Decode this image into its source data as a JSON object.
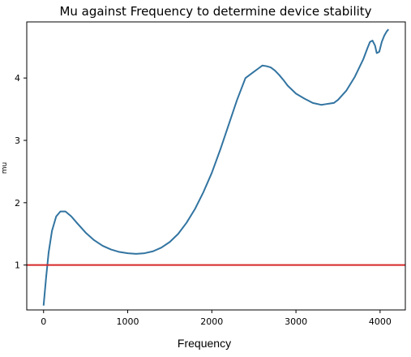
{
  "chart_data": {
    "type": "line",
    "title": "Mu against Frequency to determine device stability",
    "xlabel": "Frequency",
    "ylabel": "mu",
    "xlim": [
      -200,
      4300
    ],
    "ylim": [
      0.28,
      4.9
    ],
    "xticks": [
      0,
      1000,
      2000,
      3000,
      4000
    ],
    "yticks": [
      1,
      2,
      3,
      4
    ],
    "grid": false,
    "series": [
      {
        "color": "#3274a1",
        "x": [
          0,
          30,
          60,
          100,
          150,
          200,
          260,
          330,
          400,
          500,
          600,
          700,
          800,
          900,
          1000,
          1100,
          1200,
          1300,
          1400,
          1500,
          1600,
          1700,
          1800,
          1900,
          2000,
          2100,
          2200,
          2300,
          2400,
          2500,
          2550,
          2600,
          2650,
          2700,
          2750,
          2800,
          2850,
          2900,
          3000,
          3100,
          3200,
          3300,
          3350,
          3400,
          3450,
          3500,
          3600,
          3700,
          3800,
          3850,
          3880,
          3910,
          3940,
          3960,
          3990,
          4020,
          4050,
          4080,
          4100
        ],
        "y": [
          0.35,
          0.8,
          1.2,
          1.55,
          1.78,
          1.86,
          1.86,
          1.78,
          1.67,
          1.52,
          1.4,
          1.31,
          1.25,
          1.21,
          1.19,
          1.18,
          1.19,
          1.22,
          1.28,
          1.37,
          1.5,
          1.68,
          1.9,
          2.17,
          2.48,
          2.85,
          3.25,
          3.65,
          4.0,
          4.1,
          4.15,
          4.2,
          4.19,
          4.17,
          4.12,
          4.05,
          3.97,
          3.88,
          3.75,
          3.67,
          3.6,
          3.57,
          3.58,
          3.59,
          3.6,
          3.65,
          3.8,
          4.02,
          4.3,
          4.48,
          4.58,
          4.6,
          4.52,
          4.4,
          4.42,
          4.58,
          4.68,
          4.75,
          4.78
        ]
      }
    ],
    "hline": {
      "y": 1.0,
      "color": "#d62728"
    }
  }
}
